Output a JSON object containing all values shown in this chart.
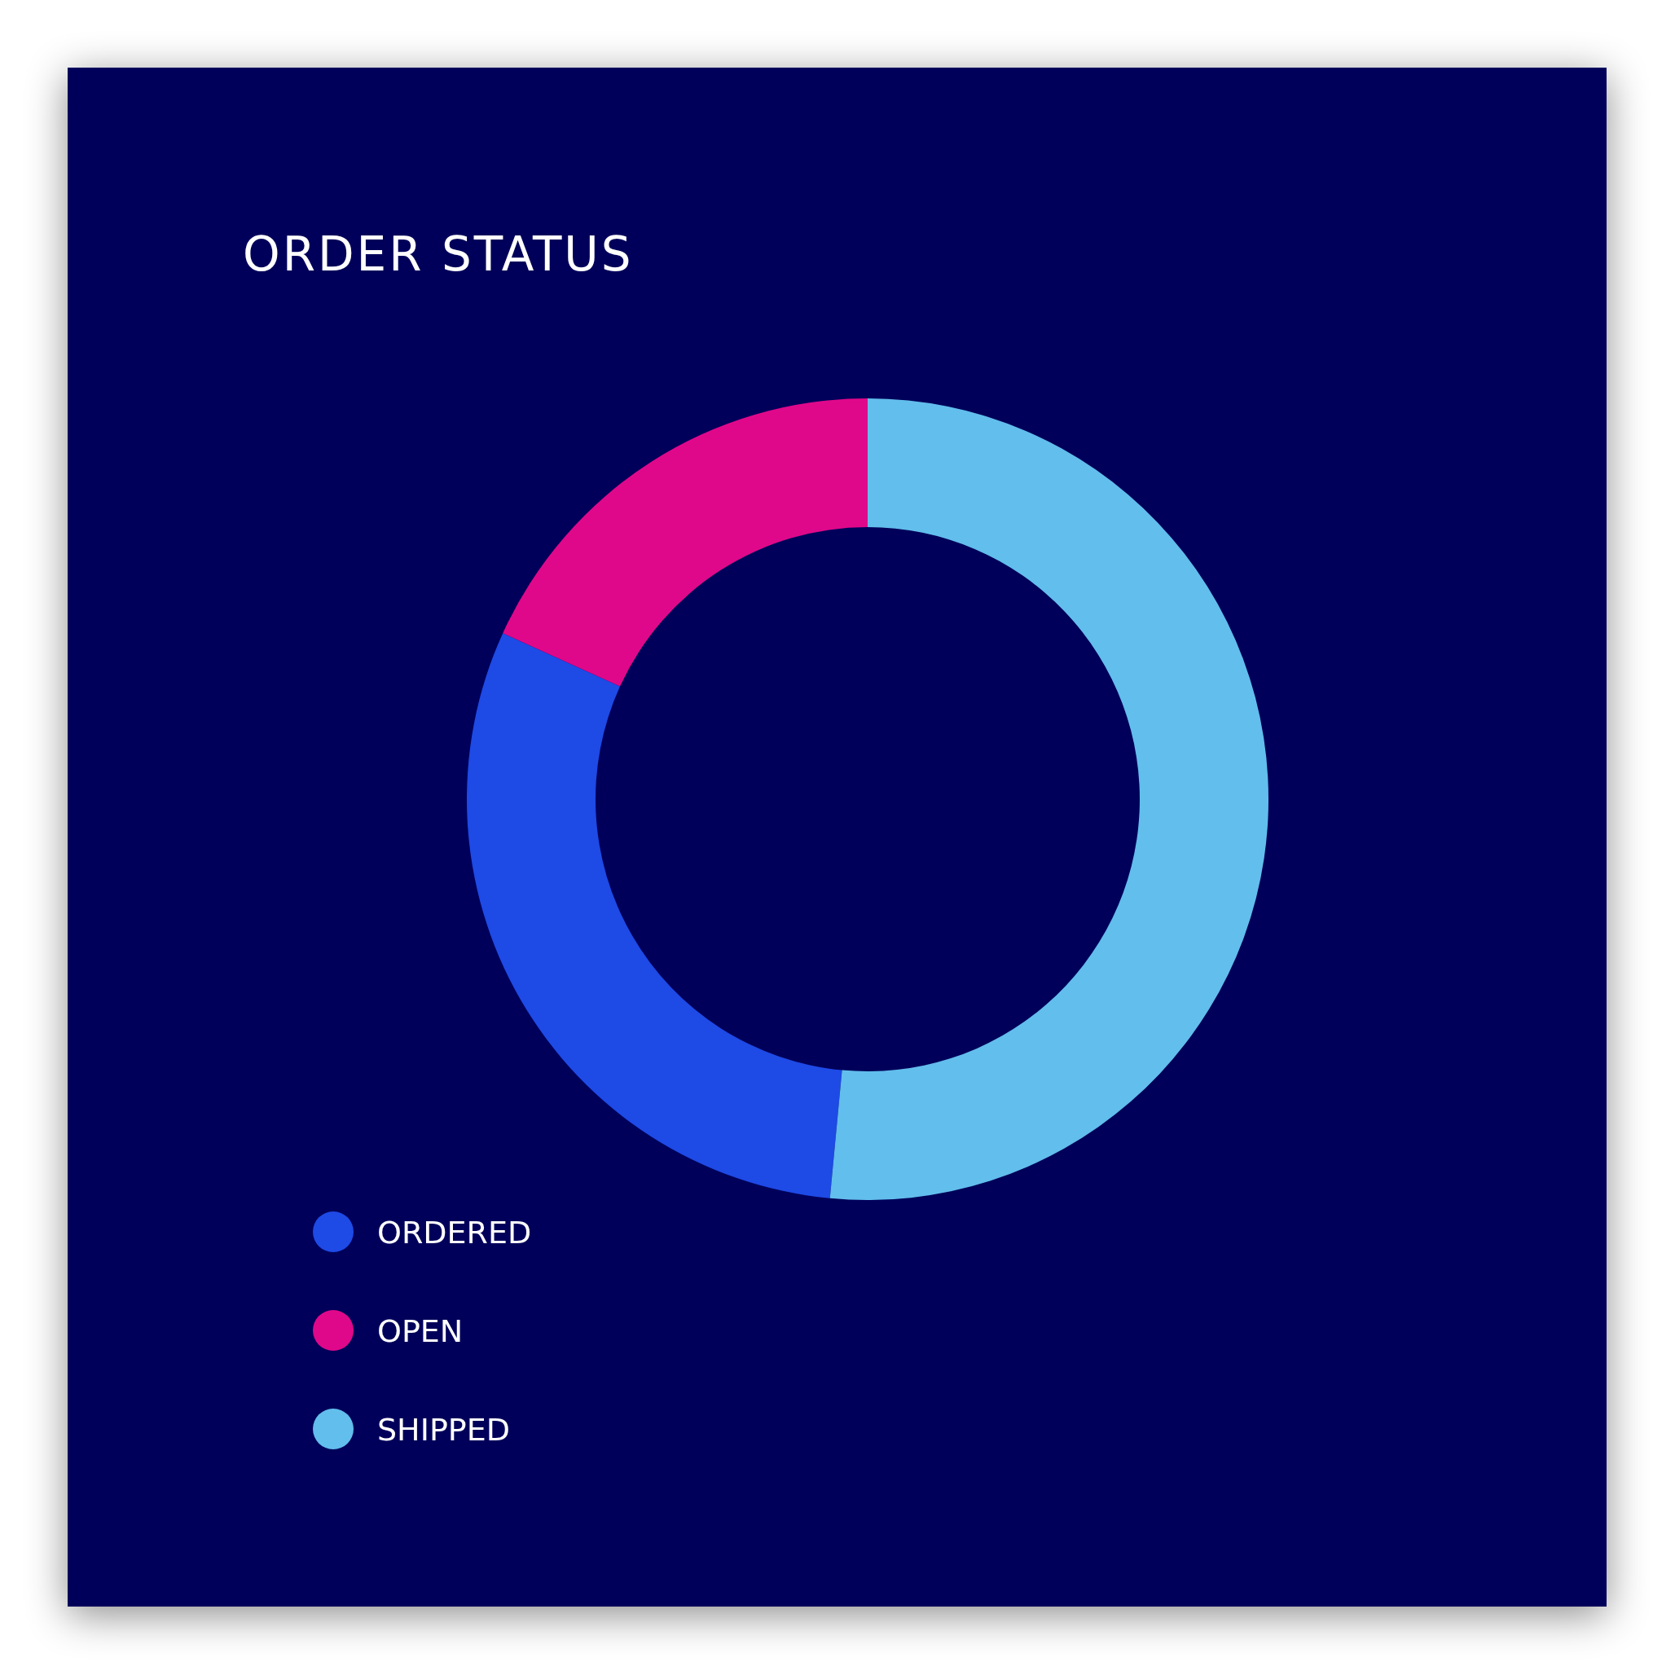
{
  "chart_data": {
    "type": "donut",
    "title": "ORDER STATUS",
    "categories": [
      "ORDERED",
      "OPEN",
      "SHIPPED"
    ],
    "values": [
      30.3,
      18.2,
      51.5
    ],
    "colors": [
      "#1e4ae6",
      "#e0088a",
      "#62beec"
    ],
    "legend": "bottom left"
  }
}
